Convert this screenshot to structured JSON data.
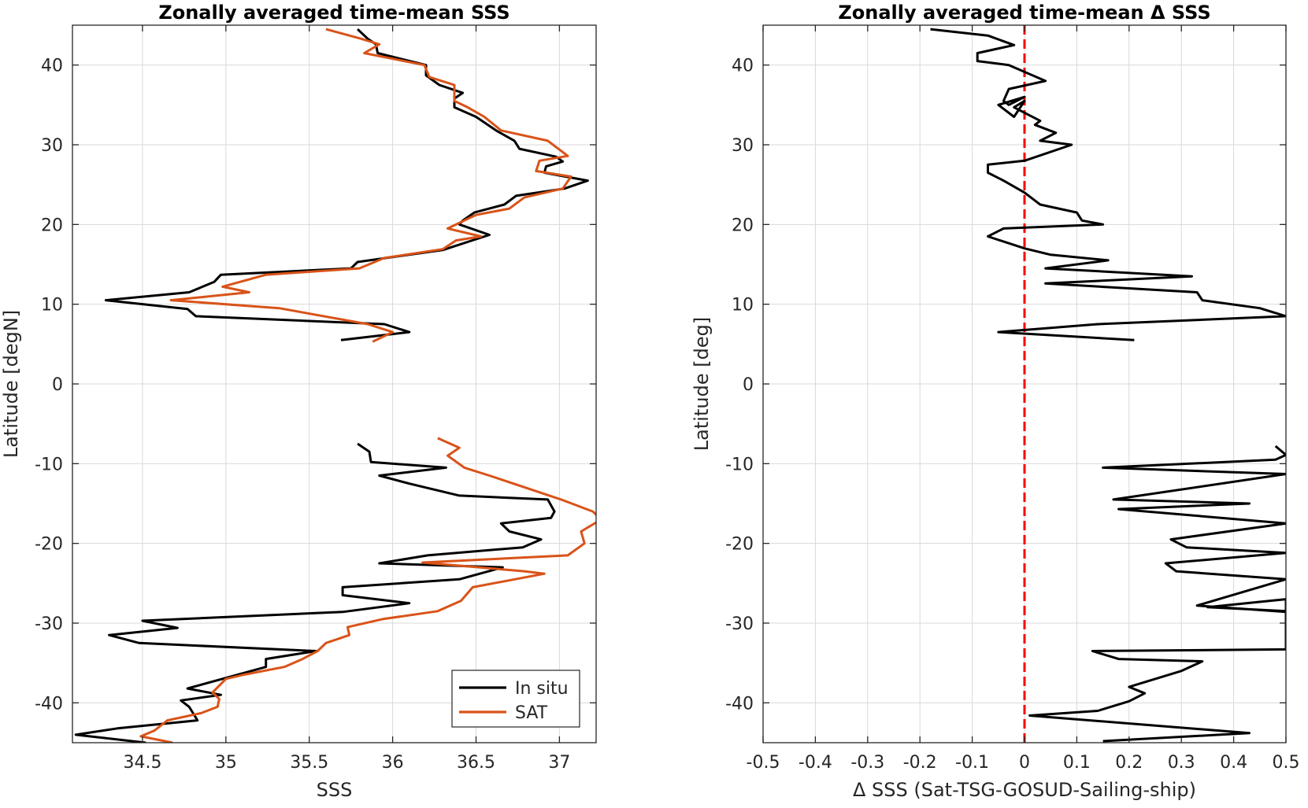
{
  "chart_data": [
    {
      "type": "line",
      "title": "Zonally averaged time-mean SSS",
      "xlabel": "SSS",
      "ylabel": "Latitude [degN]",
      "xlim": [
        34.08,
        37.22
      ],
      "ylim": [
        -45,
        45
      ],
      "xticks": [
        34.5,
        35,
        35.5,
        36,
        36.5,
        37
      ],
      "xtick_labels": [
        "34.5",
        "35",
        "35.5",
        "36",
        "36.5",
        "37"
      ],
      "yticks": [
        -40,
        -30,
        -20,
        -10,
        0,
        10,
        20,
        30,
        40
      ],
      "ytick_labels": [
        "-40",
        "-30",
        "-20",
        "-10",
        "0",
        "10",
        "20",
        "30",
        "40"
      ],
      "grid": true,
      "legend_position": "bottom-right",
      "series": [
        {
          "name": "In situ",
          "color": "#000000",
          "segments": [
            [
              [
                35.79,
                44.5
              ],
              [
                35.85,
                43.3
              ],
              [
                35.9,
                42.6
              ],
              [
                35.91,
                41.5
              ],
              [
                36.2,
                40
              ],
              [
                36.2,
                38.7
              ],
              [
                36.28,
                37.5
              ],
              [
                36.42,
                36.5
              ],
              [
                36.37,
                35.8
              ],
              [
                36.37,
                34.7
              ],
              [
                36.5,
                33.5
              ],
              [
                36.62,
                31.8
              ],
              [
                36.73,
                30.5
              ],
              [
                36.76,
                29.5
              ],
              [
                36.98,
                28.5
              ],
              [
                37.02,
                27.9
              ],
              [
                36.92,
                27.3
              ],
              [
                36.91,
                26.5
              ],
              [
                37.17,
                25.5
              ],
              [
                37.03,
                24.5
              ],
              [
                36.74,
                23.6
              ],
              [
                36.67,
                22.5
              ],
              [
                36.49,
                21.5
              ],
              [
                36.42,
                20.5
              ],
              [
                36.4,
                20.0
              ],
              [
                36.58,
                18.7
              ],
              [
                36.3,
                16.8
              ],
              [
                35.79,
                15.3
              ],
              [
                35.75,
                14.5
              ],
              [
                34.97,
                13.7
              ],
              [
                34.93,
                12.8
              ],
              [
                34.78,
                11.5
              ],
              [
                34.28,
                10.5
              ],
              [
                34.77,
                9.4
              ],
              [
                34.82,
                8.5
              ],
              [
                35.95,
                7.5
              ],
              [
                36.1,
                6.5
              ],
              [
                35.69,
                5.5
              ]
            ],
            [
              [
                35.79,
                -7.5
              ],
              [
                35.86,
                -8.5
              ],
              [
                35.87,
                -9.8
              ],
              [
                36.32,
                -10.5
              ],
              [
                35.92,
                -11.5
              ],
              [
                36.1,
                -12.5
              ],
              [
                36.4,
                -14.0
              ],
              [
                36.93,
                -14.5
              ],
              [
                36.97,
                -16.0
              ],
              [
                36.95,
                -16.8
              ],
              [
                36.65,
                -17.5
              ],
              [
                36.7,
                -18.5
              ],
              [
                36.89,
                -19.5
              ],
              [
                36.78,
                -20.5
              ],
              [
                36.21,
                -21.5
              ],
              [
                35.92,
                -22.5
              ],
              [
                36.66,
                -23.0
              ],
              [
                36.4,
                -24.5
              ],
              [
                35.7,
                -25.5
              ],
              [
                35.7,
                -26.5
              ],
              [
                36.1,
                -27.5
              ],
              [
                35.7,
                -28.6
              ],
              [
                34.5,
                -29.7
              ],
              [
                34.71,
                -30.6
              ],
              [
                34.3,
                -31.5
              ],
              [
                34.48,
                -32.5
              ],
              [
                35.54,
                -33.5
              ],
              [
                35.24,
                -34.5
              ],
              [
                35.24,
                -35.5
              ],
              [
                34.77,
                -38.2
              ],
              [
                34.97,
                -39.0
              ],
              [
                34.73,
                -39.7
              ],
              [
                34.78,
                -40.5
              ],
              [
                34.83,
                -42.2
              ],
              [
                34.35,
                -43.2
              ],
              [
                34.1,
                -44.0
              ],
              [
                34.52,
                -45.0
              ]
            ]
          ]
        },
        {
          "name": "SAT",
          "color": "#d95319",
          "segments": [
            [
              [
                35.6,
                44.5
              ],
              [
                35.81,
                43.3
              ],
              [
                35.92,
                42.6
              ],
              [
                35.83,
                41.5
              ],
              [
                36.19,
                40
              ],
              [
                36.22,
                38.5
              ],
              [
                36.37,
                37.5
              ],
              [
                36.37,
                35.5
              ],
              [
                36.45,
                34.7
              ],
              [
                36.55,
                33.5
              ],
              [
                36.65,
                31.8
              ],
              [
                36.93,
                30.5
              ],
              [
                37.05,
                28.6
              ],
              [
                36.88,
                28.0
              ],
              [
                36.86,
                26.7
              ],
              [
                37.07,
                26.0
              ],
              [
                37.02,
                24.5
              ],
              [
                36.79,
                23.4
              ],
              [
                36.7,
                22.0
              ],
              [
                36.5,
                21.2
              ],
              [
                36.33,
                19.5
              ],
              [
                36.53,
                18.5
              ],
              [
                36.38,
                18.0
              ],
              [
                36.3,
                16.9
              ],
              [
                35.95,
                15.8
              ],
              [
                35.8,
                14.5
              ],
              [
                35.24,
                13.7
              ],
              [
                34.98,
                12.2
              ],
              [
                35.14,
                11.5
              ],
              [
                34.67,
                10.5
              ],
              [
                35.32,
                9.5
              ],
              [
                35.85,
                7.5
              ],
              [
                36.0,
                6.5
              ],
              [
                35.88,
                5.3
              ]
            ],
            [
              [
                36.27,
                -6.8
              ],
              [
                36.4,
                -8.0
              ],
              [
                36.33,
                -9.0
              ],
              [
                36.43,
                -10.5
              ],
              [
                36.58,
                -11.5
              ],
              [
                37.01,
                -14.5
              ],
              [
                37.2,
                -16.0
              ],
              [
                37.25,
                -17.0
              ],
              [
                37.13,
                -18.5
              ],
              [
                37.15,
                -20.0
              ],
              [
                37.05,
                -21.5
              ],
              [
                36.18,
                -22.4
              ],
              [
                36.79,
                -23.5
              ],
              [
                36.91,
                -23.8
              ],
              [
                36.48,
                -25.5
              ],
              [
                36.41,
                -27.2
              ],
              [
                36.27,
                -28.5
              ],
              [
                35.94,
                -29.5
              ],
              [
                35.73,
                -30.5
              ],
              [
                35.74,
                -31.5
              ],
              [
                35.6,
                -32.5
              ],
              [
                35.55,
                -33.5
              ],
              [
                35.46,
                -34.5
              ],
              [
                35.35,
                -35.5
              ],
              [
                35.1,
                -36.5
              ],
              [
                35.0,
                -37.0
              ],
              [
                34.92,
                -38.7
              ],
              [
                34.96,
                -39.5
              ],
              [
                34.95,
                -40.5
              ],
              [
                34.85,
                -41.3
              ],
              [
                34.65,
                -42.2
              ],
              [
                34.57,
                -43.5
              ],
              [
                34.49,
                -44.2
              ],
              [
                34.68,
                -45.0
              ]
            ]
          ]
        }
      ]
    },
    {
      "type": "line",
      "title": "Zonally averaged time-mean Δ SSS",
      "xlabel": "Δ SSS (Sat-TSG-GOSUD-Sailing-ship)",
      "ylabel": "Latitude [deg]",
      "xlim": [
        -0.5,
        0.5
      ],
      "ylim": [
        -45,
        45
      ],
      "xticks": [
        -0.5,
        -0.4,
        -0.3,
        -0.2,
        -0.1,
        0,
        0.1,
        0.2,
        0.3,
        0.4,
        0.5
      ],
      "xtick_labels": [
        "-0.5",
        "-0.4",
        "-0.3",
        "-0.2",
        "-0.1",
        "0",
        "0.1",
        "0.2",
        "0.3",
        "0.4",
        "0.5"
      ],
      "yticks": [
        -40,
        -30,
        -20,
        -10,
        0,
        10,
        20,
        30,
        40
      ],
      "ytick_labels": [
        "-40",
        "-30",
        "-20",
        "-10",
        "0",
        "10",
        "20",
        "30",
        "40"
      ],
      "grid": true,
      "reference_line": {
        "x": 0,
        "color": "#ff0000",
        "style": "dashed"
      },
      "series": [
        {
          "color": "#000000",
          "segments": [
            [
              [
                -0.18,
                44.5
              ],
              [
                -0.07,
                43.7
              ],
              [
                -0.02,
                42.5
              ],
              [
                -0.09,
                41.5
              ],
              [
                -0.09,
                40.5
              ],
              [
                -0.03,
                40.0
              ],
              [
                0.04,
                38.0
              ],
              [
                -0.03,
                37.0
              ],
              [
                -0.04,
                35.5
              ],
              [
                -0.03,
                35.0
              ],
              [
                0.0,
                36.0
              ],
              [
                -0.05,
                35.0
              ],
              [
                -0.02,
                33.5
              ],
              [
                0.0,
                35.5
              ],
              [
                -0.02,
                34.7
              ],
              [
                0.03,
                33.0
              ],
              [
                0.02,
                32.5
              ],
              [
                0.06,
                31.5
              ],
              [
                0.03,
                30.5
              ],
              [
                0.09,
                30.0
              ],
              [
                0.0,
                28.0
              ],
              [
                -0.07,
                27.5
              ],
              [
                -0.07,
                26.5
              ],
              [
                -0.04,
                25.5
              ],
              [
                0.0,
                24.0
              ],
              [
                0.03,
                22.5
              ],
              [
                0.1,
                21.5
              ],
              [
                0.11,
                20.5
              ],
              [
                0.15,
                20.0
              ],
              [
                -0.04,
                19.5
              ],
              [
                -0.07,
                18.5
              ],
              [
                0.0,
                17.0
              ],
              [
                0.05,
                16.2
              ],
              [
                0.16,
                15.5
              ],
              [
                0.04,
                14.5
              ],
              [
                0.32,
                13.5
              ],
              [
                0.04,
                12.6
              ],
              [
                0.33,
                11.5
              ],
              [
                0.34,
                10.5
              ],
              [
                0.45,
                9.5
              ],
              [
                0.5,
                8.5
              ],
              [
                0.14,
                7.5
              ],
              [
                -0.05,
                6.5
              ],
              [
                0.21,
                5.5
              ]
            ],
            [
              [
                0.48,
                -7.8
              ],
              [
                0.5,
                -8.9
              ],
              [
                0.48,
                -9.5
              ],
              [
                0.15,
                -10.5
              ],
              [
                0.5,
                -11.3
              ],
              [
                0.17,
                -14.5
              ],
              [
                0.43,
                -15.0
              ],
              [
                0.18,
                -15.7
              ],
              [
                0.5,
                -17.5
              ],
              [
                0.28,
                -19.5
              ],
              [
                0.31,
                -20.5
              ],
              [
                0.5,
                -21.2
              ],
              [
                0.27,
                -22.5
              ],
              [
                0.29,
                -23.5
              ],
              [
                0.5,
                -24.5
              ],
              [
                0.33,
                -27.8
              ],
              [
                0.5,
                -28.6
              ],
              [
                0.5,
                -27.0
              ],
              [
                0.35,
                -28.0
              ],
              [
                0.5,
                -28.5
              ],
              [
                0.5,
                -33.3
              ],
              [
                0.13,
                -33.5
              ],
              [
                0.18,
                -34.5
              ],
              [
                0.34,
                -34.8
              ],
              [
                0.3,
                -36.0
              ],
              [
                0.2,
                -38.0
              ],
              [
                0.23,
                -38.8
              ],
              [
                0.2,
                -39.8
              ],
              [
                0.14,
                -41.0
              ],
              [
                0.01,
                -41.6
              ],
              [
                0.43,
                -43.8
              ],
              [
                0.15,
                -44.8
              ]
            ]
          ]
        }
      ]
    }
  ]
}
